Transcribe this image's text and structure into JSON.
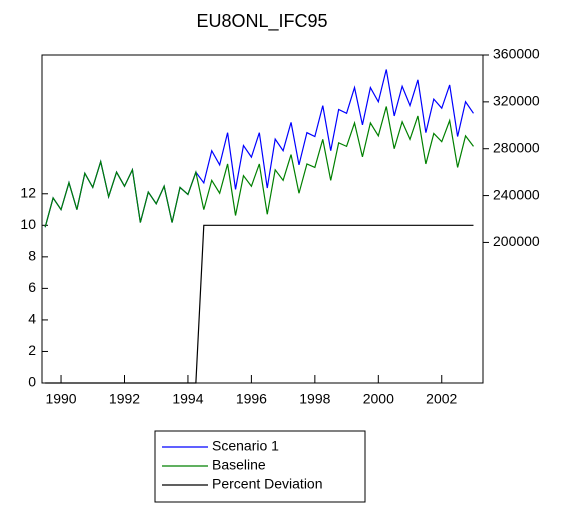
{
  "chart_data": {
    "type": "line",
    "title": "EU8ONL_IFC95",
    "x": [
      1989.5,
      1989.75,
      1990.0,
      1990.25,
      1990.5,
      1990.75,
      1991.0,
      1991.25,
      1991.5,
      1991.75,
      1992.0,
      1992.25,
      1992.5,
      1992.75,
      1993.0,
      1993.25,
      1993.5,
      1993.75,
      1994.0,
      1994.25,
      1994.5,
      1994.75,
      1995.0,
      1995.25,
      1995.5,
      1995.75,
      1996.0,
      1996.25,
      1996.5,
      1996.75,
      1997.0,
      1997.25,
      1997.5,
      1997.75,
      1998.0,
      1998.25,
      1998.5,
      1998.75,
      1999.0,
      1999.25,
      1999.5,
      1999.75,
      2000.0,
      2000.25,
      2000.5,
      2000.75,
      2001.0,
      2001.25,
      2001.5,
      2001.75,
      2002.0,
      2002.25,
      2002.5,
      2002.75,
      2003.0
    ],
    "series": [
      {
        "name": "Scenario 1",
        "color": "#0000ff",
        "axis": "y2",
        "values": [
          213000,
          238000,
          228000,
          251000,
          228000,
          259000,
          247000,
          269000,
          239000,
          260000,
          248000,
          262000,
          217000,
          243000,
          233000,
          248000,
          217000,
          247000,
          241000,
          260000,
          250800,
          278300,
          266200,
          293700,
          245300,
          282700,
          272800,
          293700,
          246400,
          288200,
          278300,
          302500,
          266200,
          293700,
          290400,
          316800,
          278300,
          313500,
          310200,
          332200,
          300300,
          332200,
          320100,
          347600,
          308000,
          333300,
          316800,
          338800,
          293700,
          322300,
          314600,
          334400,
          290400,
          320100,
          310200
        ]
      },
      {
        "name": "Baseline",
        "color": "#008000",
        "axis": "y2",
        "values": [
          213000,
          238000,
          228000,
          251000,
          228000,
          259000,
          247000,
          269000,
          239000,
          260000,
          248000,
          262000,
          217000,
          243000,
          233000,
          248000,
          217000,
          247000,
          241000,
          260000,
          228000,
          253000,
          242000,
          267000,
          223000,
          257000,
          248000,
          267000,
          224000,
          262000,
          253000,
          275000,
          242000,
          267000,
          264000,
          288000,
          253000,
          285000,
          282000,
          302000,
          273000,
          302000,
          291000,
          316000,
          280000,
          303000,
          288000,
          308000,
          267000,
          293000,
          286000,
          304000,
          264000,
          291000,
          282000
        ]
      },
      {
        "name": "Percent Deviation",
        "color": "#000000",
        "axis": "y",
        "values": [
          0,
          0,
          0,
          0,
          0,
          0,
          0,
          0,
          0,
          0,
          0,
          0,
          0,
          0,
          0,
          0,
          0,
          0,
          0,
          0,
          10,
          10,
          10,
          10,
          10,
          10,
          10,
          10,
          10,
          10,
          10,
          10,
          10,
          10,
          10,
          10,
          10,
          10,
          10,
          10,
          10,
          10,
          10,
          10,
          10,
          10,
          10,
          10,
          10,
          10,
          10,
          10,
          10,
          10,
          10
        ]
      }
    ],
    "xlim": [
      1989.4,
      2003.3
    ],
    "xticks": [
      1990,
      1992,
      1994,
      1996,
      1998,
      2000,
      2002
    ],
    "ylim": [
      0,
      20.8
    ],
    "yticks": [
      0,
      2,
      4,
      6,
      8,
      10,
      12
    ],
    "y2lim": [
      80000,
      360000
    ],
    "y2ticks": [
      200000,
      240000,
      280000,
      320000,
      360000
    ]
  }
}
